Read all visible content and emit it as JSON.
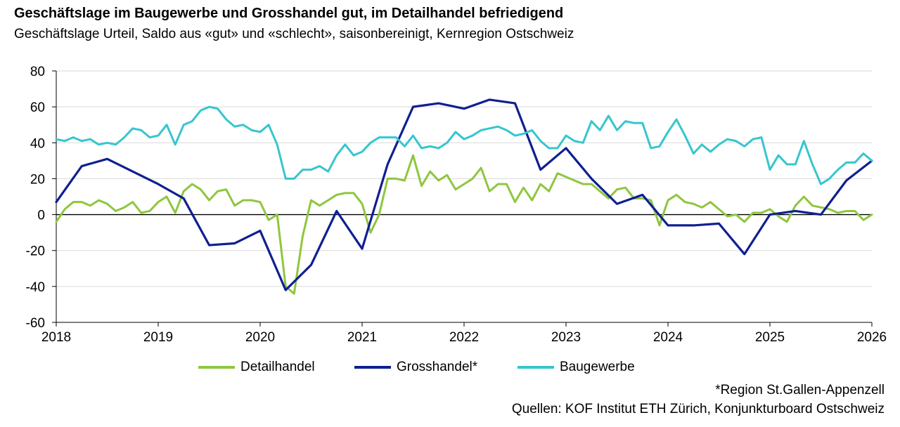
{
  "title": "Geschäftslage im Baugewerbe und Grosshandel gut, im Detailhandel befriedigend",
  "subtitle": "Geschäftslage Urteil, Saldo aus «gut» und «schlecht», saisonbereinigt, Kernregion Ostschweiz",
  "footnote": "*Region St.Gallen-Appenzell",
  "source": "Quellen: KOF Institut ETH Zürich, Konjunkturboard Ostschweiz",
  "chart_data": {
    "type": "line",
    "title": "Geschäftslage im Baugewerbe und Grosshandel gut, im Detailhandel befriedigend",
    "subtitle": "Geschäftslage Urteil, Saldo aus «gut» und «schlecht», saisonbereinigt, Kernregion Ostschweiz",
    "xlim": [
      2018,
      2026
    ],
    "ylim": [
      -60,
      80
    ],
    "yticks": [
      80,
      60,
      40,
      20,
      0,
      -20,
      -40,
      -60
    ],
    "xticks": [
      "2018",
      "2019",
      "2020",
      "2021",
      "2022",
      "2023",
      "2024",
      "2025",
      "2026"
    ],
    "grid": true,
    "legend_position": "bottom",
    "series": [
      {
        "name": "Detailhandel",
        "color": "#8fc63f",
        "points": [
          [
            2018.0,
            -4
          ],
          [
            2018.083,
            3
          ],
          [
            2018.167,
            7
          ],
          [
            2018.25,
            7
          ],
          [
            2018.333,
            5
          ],
          [
            2018.417,
            8
          ],
          [
            2018.5,
            6
          ],
          [
            2018.583,
            2
          ],
          [
            2018.667,
            4
          ],
          [
            2018.75,
            7
          ],
          [
            2018.833,
            1
          ],
          [
            2018.917,
            2
          ],
          [
            2019.0,
            7
          ],
          [
            2019.083,
            10
          ],
          [
            2019.167,
            1
          ],
          [
            2019.25,
            13
          ],
          [
            2019.333,
            17
          ],
          [
            2019.417,
            14
          ],
          [
            2019.5,
            8
          ],
          [
            2019.583,
            13
          ],
          [
            2019.667,
            14
          ],
          [
            2019.75,
            5
          ],
          [
            2019.833,
            8
          ],
          [
            2019.917,
            8
          ],
          [
            2020.0,
            7
          ],
          [
            2020.083,
            -3
          ],
          [
            2020.167,
            0
          ],
          [
            2020.25,
            -40
          ],
          [
            2020.333,
            -44
          ],
          [
            2020.417,
            -12
          ],
          [
            2020.5,
            8
          ],
          [
            2020.583,
            5
          ],
          [
            2020.667,
            8
          ],
          [
            2020.75,
            11
          ],
          [
            2020.833,
            12
          ],
          [
            2020.917,
            12
          ],
          [
            2021.0,
            6
          ],
          [
            2021.083,
            -10
          ],
          [
            2021.167,
            0
          ],
          [
            2021.25,
            20
          ],
          [
            2021.333,
            20
          ],
          [
            2021.417,
            19
          ],
          [
            2021.5,
            33
          ],
          [
            2021.583,
            16
          ],
          [
            2021.667,
            24
          ],
          [
            2021.75,
            19
          ],
          [
            2021.833,
            22
          ],
          [
            2021.917,
            14
          ],
          [
            2022.0,
            17
          ],
          [
            2022.083,
            20
          ],
          [
            2022.167,
            26
          ],
          [
            2022.25,
            13
          ],
          [
            2022.333,
            17
          ],
          [
            2022.417,
            17
          ],
          [
            2022.5,
            7
          ],
          [
            2022.583,
            15
          ],
          [
            2022.667,
            8
          ],
          [
            2022.75,
            17
          ],
          [
            2022.833,
            13
          ],
          [
            2022.917,
            23
          ],
          [
            2023.0,
            21
          ],
          [
            2023.083,
            19
          ],
          [
            2023.167,
            17
          ],
          [
            2023.25,
            17
          ],
          [
            2023.333,
            13
          ],
          [
            2023.417,
            9
          ],
          [
            2023.5,
            14
          ],
          [
            2023.583,
            15
          ],
          [
            2023.667,
            9
          ],
          [
            2023.75,
            9
          ],
          [
            2023.833,
            8
          ],
          [
            2023.917,
            -6
          ],
          [
            2024.0,
            8
          ],
          [
            2024.083,
            11
          ],
          [
            2024.167,
            7
          ],
          [
            2024.25,
            6
          ],
          [
            2024.333,
            4
          ],
          [
            2024.417,
            7
          ],
          [
            2024.5,
            3
          ],
          [
            2024.583,
            -1
          ],
          [
            2024.667,
            0
          ],
          [
            2024.75,
            -4
          ],
          [
            2024.833,
            1
          ],
          [
            2024.917,
            1
          ],
          [
            2025.0,
            3
          ],
          [
            2025.083,
            -1
          ],
          [
            2025.167,
            -4
          ],
          [
            2025.25,
            5
          ],
          [
            2025.333,
            10
          ],
          [
            2025.417,
            5
          ],
          [
            2025.5,
            4
          ],
          [
            2025.583,
            3
          ],
          [
            2025.667,
            1
          ],
          [
            2025.75,
            2
          ],
          [
            2025.833,
            2
          ],
          [
            2025.917,
            -3
          ],
          [
            2026.0,
            0
          ]
        ]
      },
      {
        "name": "Grosshandel*",
        "color": "#0f1f91",
        "points": [
          [
            2018.0,
            7
          ],
          [
            2018.25,
            27
          ],
          [
            2018.5,
            31
          ],
          [
            2018.75,
            24
          ],
          [
            2019.0,
            17
          ],
          [
            2019.25,
            9
          ],
          [
            2019.5,
            -17
          ],
          [
            2019.75,
            -16
          ],
          [
            2020.0,
            -9
          ],
          [
            2020.25,
            -42
          ],
          [
            2020.5,
            -28
          ],
          [
            2020.75,
            2
          ],
          [
            2021.0,
            -19
          ],
          [
            2021.25,
            28
          ],
          [
            2021.5,
            60
          ],
          [
            2021.75,
            62
          ],
          [
            2022.0,
            59
          ],
          [
            2022.25,
            64
          ],
          [
            2022.5,
            62
          ],
          [
            2022.75,
            25
          ],
          [
            2023.0,
            37
          ],
          [
            2023.25,
            20
          ],
          [
            2023.5,
            6
          ],
          [
            2023.75,
            11
          ],
          [
            2024.0,
            -6
          ],
          [
            2024.25,
            -6
          ],
          [
            2024.5,
            -5
          ],
          [
            2024.75,
            -22
          ],
          [
            2025.0,
            0
          ],
          [
            2025.25,
            2
          ],
          [
            2025.5,
            0
          ],
          [
            2025.75,
            19
          ],
          [
            2026.0,
            30
          ]
        ]
      },
      {
        "name": "Baugewerbe",
        "color": "#35c6cf",
        "points": [
          [
            2018.0,
            42
          ],
          [
            2018.083,
            41
          ],
          [
            2018.167,
            43
          ],
          [
            2018.25,
            41
          ],
          [
            2018.333,
            42
          ],
          [
            2018.417,
            39
          ],
          [
            2018.5,
            40
          ],
          [
            2018.583,
            39
          ],
          [
            2018.667,
            43
          ],
          [
            2018.75,
            48
          ],
          [
            2018.833,
            47
          ],
          [
            2018.917,
            43
          ],
          [
            2019.0,
            44
          ],
          [
            2019.083,
            50
          ],
          [
            2019.167,
            39
          ],
          [
            2019.25,
            50
          ],
          [
            2019.333,
            52
          ],
          [
            2019.417,
            58
          ],
          [
            2019.5,
            60
          ],
          [
            2019.583,
            59
          ],
          [
            2019.667,
            53
          ],
          [
            2019.75,
            49
          ],
          [
            2019.833,
            50
          ],
          [
            2019.917,
            47
          ],
          [
            2020.0,
            46
          ],
          [
            2020.083,
            50
          ],
          [
            2020.167,
            39
          ],
          [
            2020.25,
            20
          ],
          [
            2020.333,
            20
          ],
          [
            2020.417,
            25
          ],
          [
            2020.5,
            25
          ],
          [
            2020.583,
            27
          ],
          [
            2020.667,
            24
          ],
          [
            2020.75,
            33
          ],
          [
            2020.833,
            39
          ],
          [
            2020.917,
            33
          ],
          [
            2021.0,
            35
          ],
          [
            2021.083,
            40
          ],
          [
            2021.167,
            43
          ],
          [
            2021.25,
            43
          ],
          [
            2021.333,
            43
          ],
          [
            2021.417,
            38
          ],
          [
            2021.5,
            44
          ],
          [
            2021.583,
            37
          ],
          [
            2021.667,
            38
          ],
          [
            2021.75,
            37
          ],
          [
            2021.833,
            40
          ],
          [
            2021.917,
            46
          ],
          [
            2022.0,
            42
          ],
          [
            2022.083,
            44
          ],
          [
            2022.167,
            47
          ],
          [
            2022.25,
            48
          ],
          [
            2022.333,
            49
          ],
          [
            2022.417,
            47
          ],
          [
            2022.5,
            44
          ],
          [
            2022.583,
            45
          ],
          [
            2022.667,
            47
          ],
          [
            2022.75,
            41
          ],
          [
            2022.833,
            37
          ],
          [
            2022.917,
            37
          ],
          [
            2023.0,
            44
          ],
          [
            2023.083,
            41
          ],
          [
            2023.167,
            40
          ],
          [
            2023.25,
            52
          ],
          [
            2023.333,
            47
          ],
          [
            2023.417,
            55
          ],
          [
            2023.5,
            47
          ],
          [
            2023.583,
            52
          ],
          [
            2023.667,
            51
          ],
          [
            2023.75,
            51
          ],
          [
            2023.833,
            37
          ],
          [
            2023.917,
            38
          ],
          [
            2024.0,
            46
          ],
          [
            2024.083,
            53
          ],
          [
            2024.167,
            44
          ],
          [
            2024.25,
            34
          ],
          [
            2024.333,
            39
          ],
          [
            2024.417,
            35
          ],
          [
            2024.5,
            39
          ],
          [
            2024.583,
            42
          ],
          [
            2024.667,
            41
          ],
          [
            2024.75,
            38
          ],
          [
            2024.833,
            42
          ],
          [
            2024.917,
            43
          ],
          [
            2025.0,
            25
          ],
          [
            2025.083,
            33
          ],
          [
            2025.167,
            28
          ],
          [
            2025.25,
            28
          ],
          [
            2025.333,
            41
          ],
          [
            2025.417,
            28
          ],
          [
            2025.5,
            17
          ],
          [
            2025.583,
            20
          ],
          [
            2025.667,
            25
          ],
          [
            2025.75,
            29
          ],
          [
            2025.833,
            29
          ],
          [
            2025.917,
            34
          ],
          [
            2026.0,
            30
          ]
        ]
      }
    ]
  }
}
